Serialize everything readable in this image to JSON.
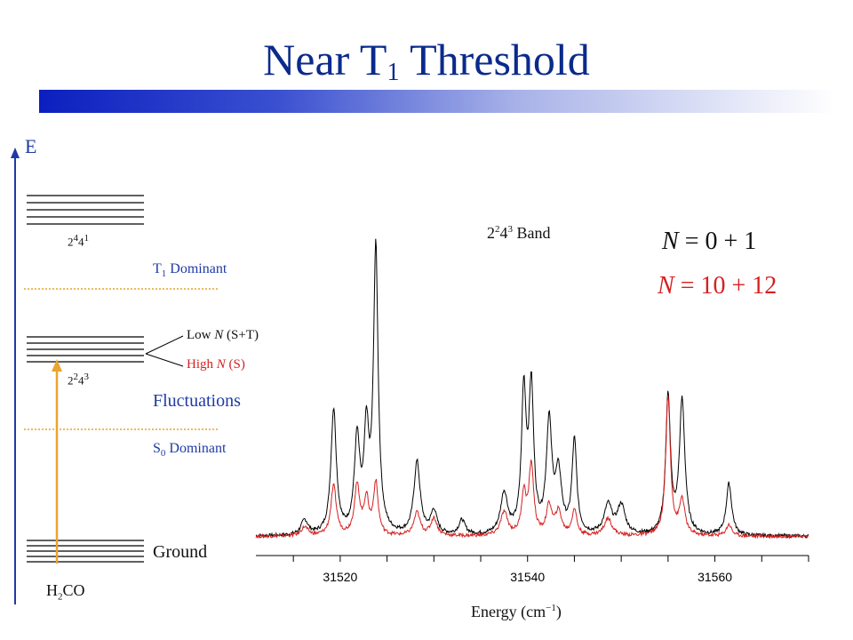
{
  "slide": {
    "title_main": "Near T",
    "title_sub": "1",
    "title_rest": " Threshold"
  },
  "diagram": {
    "energy_axis_label": "E",
    "level_upper": {
      "base": "2",
      "sup1": "4",
      "mid": "4",
      "sup2": "1"
    },
    "level_middle": {
      "base": "2",
      "sup1": "2",
      "mid": "4",
      "sup2": "3"
    },
    "t1_dominant": {
      "pre": "T",
      "sub": "1",
      "post": " Dominant"
    },
    "s0_dominant": {
      "pre": "S",
      "sub": "0",
      "post": " Dominant"
    },
    "low_n": {
      "pre": "Low ",
      "italic": "N",
      "post": " (S+T)"
    },
    "high_n": {
      "pre": "High ",
      "italic": "N",
      "post": " (S)"
    },
    "fluctuations": "Fluctuations",
    "ground": "Ground",
    "molecule": {
      "pre": "H",
      "sub": "2",
      "post": "CO"
    },
    "colors": {
      "axis": "#1f3aa6",
      "levels": "#000000",
      "dotted": "#e0a52a",
      "arrow": "#e8a530",
      "red_text": "#d62020",
      "blue_text": "#1f3aa6"
    }
  },
  "chart_data": {
    "type": "line",
    "title": {
      "pre": "2",
      "sup1": "2",
      "mid": "4",
      "sup2": "3",
      "post": " Band"
    },
    "xlabel": {
      "pre": "Energy (cm",
      "sup": "−1",
      "post": ")"
    },
    "ylabel": "",
    "xlim": [
      31511,
      31570
    ],
    "ylim": [
      0,
      1
    ],
    "xticks": [
      31520,
      31540,
      31560
    ],
    "xtick_labels": [
      "31520",
      "31540",
      "31560"
    ],
    "series": [
      {
        "name": "N = 0 + 1",
        "color": "#000000",
        "peaks": [
          {
            "x": 31516.2,
            "h": 0.05,
            "w": 0.45
          },
          {
            "x": 31519.3,
            "h": 0.43,
            "w": 0.35
          },
          {
            "x": 31521.8,
            "h": 0.32,
            "w": 0.35
          },
          {
            "x": 31522.8,
            "h": 0.33,
            "w": 0.3
          },
          {
            "x": 31523.8,
            "h": 0.98,
            "w": 0.3
          },
          {
            "x": 31528.2,
            "h": 0.25,
            "w": 0.4
          },
          {
            "x": 31530.0,
            "h": 0.08,
            "w": 0.4
          },
          {
            "x": 31533.0,
            "h": 0.05,
            "w": 0.4
          },
          {
            "x": 31537.5,
            "h": 0.14,
            "w": 0.45
          },
          {
            "x": 31539.6,
            "h": 0.48,
            "w": 0.3
          },
          {
            "x": 31540.4,
            "h": 0.49,
            "w": 0.3
          },
          {
            "x": 31542.3,
            "h": 0.38,
            "w": 0.35
          },
          {
            "x": 31543.3,
            "h": 0.2,
            "w": 0.4
          },
          {
            "x": 31545.0,
            "h": 0.32,
            "w": 0.3
          },
          {
            "x": 31548.6,
            "h": 0.1,
            "w": 0.5
          },
          {
            "x": 31550.0,
            "h": 0.1,
            "w": 0.5
          },
          {
            "x": 31555.0,
            "h": 0.48,
            "w": 0.3
          },
          {
            "x": 31556.5,
            "h": 0.46,
            "w": 0.35
          },
          {
            "x": 31561.5,
            "h": 0.18,
            "w": 0.35
          }
        ]
      },
      {
        "name": "N = 10 + 12",
        "color": "#d62020",
        "peaks": [
          {
            "x": 31516.2,
            "h": 0.03,
            "w": 0.45
          },
          {
            "x": 31519.3,
            "h": 0.17,
            "w": 0.35
          },
          {
            "x": 31521.8,
            "h": 0.17,
            "w": 0.35
          },
          {
            "x": 31522.8,
            "h": 0.12,
            "w": 0.3
          },
          {
            "x": 31523.8,
            "h": 0.18,
            "w": 0.3
          },
          {
            "x": 31528.2,
            "h": 0.08,
            "w": 0.4
          },
          {
            "x": 31530.0,
            "h": 0.06,
            "w": 0.4
          },
          {
            "x": 31537.5,
            "h": 0.08,
            "w": 0.45
          },
          {
            "x": 31539.6,
            "h": 0.14,
            "w": 0.3
          },
          {
            "x": 31540.4,
            "h": 0.24,
            "w": 0.3
          },
          {
            "x": 31542.3,
            "h": 0.1,
            "w": 0.35
          },
          {
            "x": 31543.3,
            "h": 0.08,
            "w": 0.4
          },
          {
            "x": 31545.0,
            "h": 0.09,
            "w": 0.3
          },
          {
            "x": 31548.6,
            "h": 0.06,
            "w": 0.5
          },
          {
            "x": 31555.0,
            "h": 0.48,
            "w": 0.3
          },
          {
            "x": 31556.5,
            "h": 0.12,
            "w": 0.35
          },
          {
            "x": 31561.5,
            "h": 0.04,
            "w": 0.35
          }
        ]
      }
    ],
    "legend": [
      {
        "pre": "",
        "italic": "N",
        "post": " = 0 + 1",
        "color": "#000000"
      },
      {
        "pre": "",
        "italic": "N",
        "post": " = 10 + 12",
        "color": "#d62020"
      }
    ]
  }
}
